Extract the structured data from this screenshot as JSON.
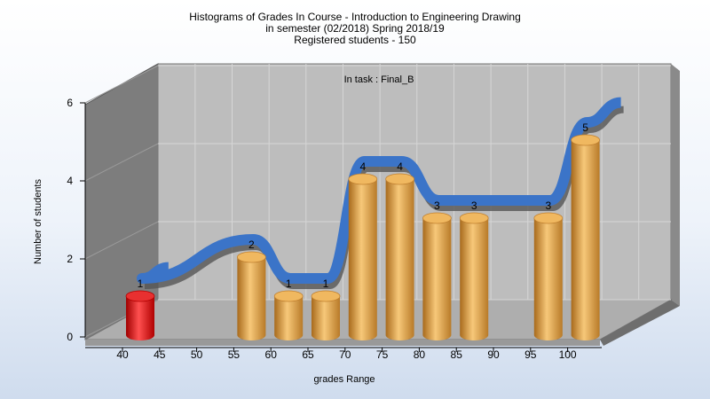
{
  "chart_data": {
    "type": "bar",
    "title_lines": [
      "Histograms of Grades  In Course - Introduction to Engineering Drawing",
      "in semester  (02/2018) Spring 2018/19",
      "Registered students - 150"
    ],
    "annotation": "In task : Final_B",
    "xlabel": "grades Range",
    "ylabel": "Number of students",
    "ylim": [
      0,
      6
    ],
    "yticks": [
      0,
      2,
      4,
      6
    ],
    "xticks": [
      "40",
      "45",
      "50",
      "55",
      "60",
      "65",
      "70",
      "75",
      "80",
      "85",
      "90",
      "95",
      "100"
    ],
    "bars": [
      {
        "range": "40",
        "value": 1,
        "color": "#e01010"
      },
      {
        "range": "55",
        "value": 2,
        "color": "#e6a040"
      },
      {
        "range": "60",
        "value": 1,
        "color": "#e6a040"
      },
      {
        "range": "65",
        "value": 1,
        "color": "#e6a040"
      },
      {
        "range": "70",
        "value": 4,
        "color": "#e6a040"
      },
      {
        "range": "75",
        "value": 4,
        "color": "#e6a040"
      },
      {
        "range": "80",
        "value": 3,
        "color": "#e6a040"
      },
      {
        "range": "85",
        "value": 3,
        "color": "#e6a040"
      },
      {
        "range": "95",
        "value": 3,
        "color": "#e6a040"
      },
      {
        "range": "100",
        "value": 5,
        "color": "#e6a040"
      }
    ],
    "trend_color": "#3b74c8",
    "grid": true
  }
}
